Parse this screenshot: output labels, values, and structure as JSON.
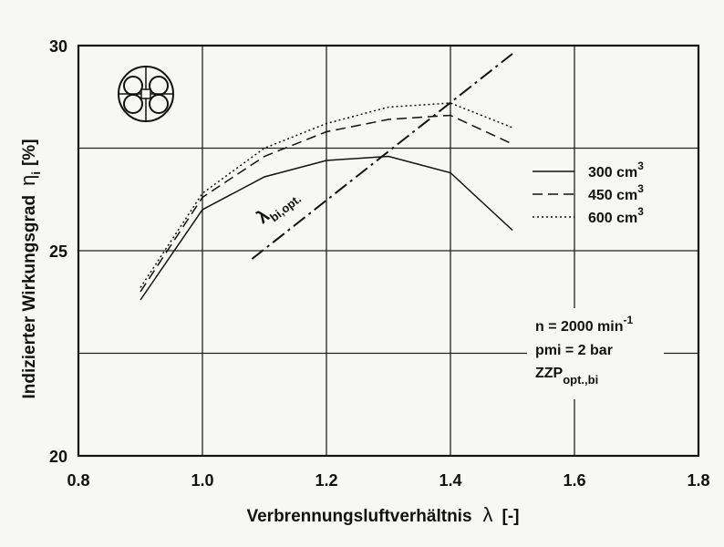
{
  "chart_data": {
    "type": "line",
    "xlabel": "Verbrennungsluftverhältnis",
    "xlabel_symbol": "λ",
    "xlabel_unit": "[-]",
    "ylabel": "Indizierter Wirkungsgrad",
    "ylabel_symbol": "η",
    "ylabel_sub": "i",
    "ylabel_unit": "[%]",
    "xlim": [
      0.8,
      1.8
    ],
    "ylim": [
      20,
      30
    ],
    "x_ticks": [
      "0.8",
      "1.0",
      "1.2",
      "1.4",
      "1.6",
      "1.8"
    ],
    "y_ticks": [
      "20",
      "25",
      "30"
    ],
    "grid": true,
    "legend_position": "right",
    "series": [
      {
        "name": "300 cm3",
        "label_text": "300 cm",
        "label_sup": "3",
        "style": "solid",
        "x": [
          0.9,
          1.0,
          1.1,
          1.2,
          1.3,
          1.4,
          1.5
        ],
        "y": [
          23.8,
          26.0,
          26.8,
          27.2,
          27.3,
          26.9,
          25.5
        ]
      },
      {
        "name": "450 cm3",
        "label_text": "450 cm",
        "label_sup": "3",
        "style": "dashed",
        "x": [
          0.9,
          1.0,
          1.1,
          1.2,
          1.3,
          1.4,
          1.5
        ],
        "y": [
          24.0,
          26.3,
          27.3,
          27.9,
          28.2,
          28.3,
          27.6
        ]
      },
      {
        "name": "600 cm3",
        "label_text": "600 cm",
        "label_sup": "3",
        "style": "dotted",
        "x": [
          0.9,
          1.0,
          1.1,
          1.2,
          1.3,
          1.4,
          1.5
        ],
        "y": [
          24.1,
          26.4,
          27.5,
          28.1,
          28.5,
          28.6,
          28.0
        ]
      }
    ],
    "optimum_line": {
      "label": "λ",
      "label_sub": "bi,opt.",
      "x": [
        1.08,
        1.5
      ],
      "y": [
        24.8,
        29.8
      ]
    },
    "annotations": {
      "speed_prefix": "n = 2000 min",
      "speed_sup": "-1",
      "pressure": "pmi = 2 bar",
      "ignition_main": "ZZP",
      "ignition_sub": "opt.,bi"
    },
    "inset_icon": "four-valve-cylinder-head-icon"
  }
}
